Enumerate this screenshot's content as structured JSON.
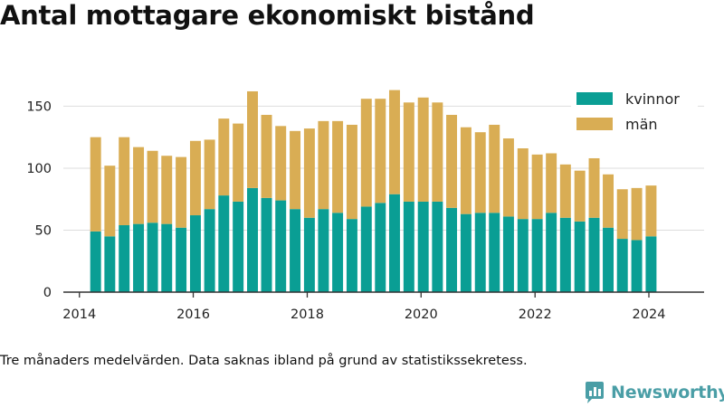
{
  "title": "Antal mottagare ekonomiskt bistånd",
  "footnote": "Tre månaders medelvärden. Data saknas ibland på grund av statistikssekretess.",
  "brand": {
    "name": "Newsworthy",
    "logo_icon": "newsworthy-logo-icon",
    "color": "#4a9ea6"
  },
  "colors": {
    "kvinnor": "#0a9e94",
    "man": "#d9ad54",
    "grid": "#dddddd",
    "axis": "#333333"
  },
  "chart_data": {
    "type": "bar",
    "stacked": true,
    "x_ticks": [
      "2014",
      "2016",
      "2018",
      "2020",
      "2022",
      "2024"
    ],
    "y_ticks": [
      0,
      50,
      100,
      150
    ],
    "ylim": [
      0,
      170
    ],
    "xlim": [
      "2013-09-20",
      "2024-12-20"
    ],
    "grid": "horizontal",
    "legend_position": "top-right",
    "dates": [
      "2014-04-15",
      "2014-07-15",
      "2014-10-15",
      "2015-01-15",
      "2015-04-15",
      "2015-07-15",
      "2015-10-15",
      "2016-01-15",
      "2016-04-15",
      "2016-07-15",
      "2016-10-15",
      "2017-01-15",
      "2017-04-15",
      "2017-07-15",
      "2017-10-15",
      "2018-01-15",
      "2018-04-15",
      "2018-07-15",
      "2018-10-15",
      "2019-01-15",
      "2019-04-15",
      "2019-07-15",
      "2019-10-15",
      "2020-01-15",
      "2020-04-15",
      "2020-07-15",
      "2020-10-15",
      "2021-01-15",
      "2021-04-15",
      "2021-07-15",
      "2021-10-15",
      "2022-01-15",
      "2022-04-15",
      "2022-07-15",
      "2022-10-15",
      "2023-01-15",
      "2023-04-15",
      "2023-07-15",
      "2023-10-15",
      "2024-01-15"
    ],
    "series": [
      {
        "name": "kvinnor",
        "color": "#0a9e94",
        "values": [
          49,
          45,
          54,
          55,
          56,
          55,
          52,
          62,
          67,
          78,
          73,
          84,
          76,
          74,
          67,
          60,
          67,
          64,
          59,
          69,
          72,
          79,
          73,
          73,
          73,
          68,
          63,
          64,
          64,
          61,
          59,
          59,
          64,
          60,
          57,
          60,
          52,
          43,
          42,
          45
        ]
      },
      {
        "name": "män",
        "color": "#d9ad54",
        "values": [
          76,
          57,
          71,
          62,
          58,
          55,
          57,
          60,
          56,
          62,
          63,
          78,
          67,
          60,
          63,
          72,
          71,
          74,
          76,
          87,
          84,
          84,
          80,
          84,
          80,
          75,
          70,
          65,
          71,
          63,
          57,
          52,
          48,
          43,
          41,
          48,
          43,
          40,
          42,
          41
        ]
      }
    ]
  }
}
